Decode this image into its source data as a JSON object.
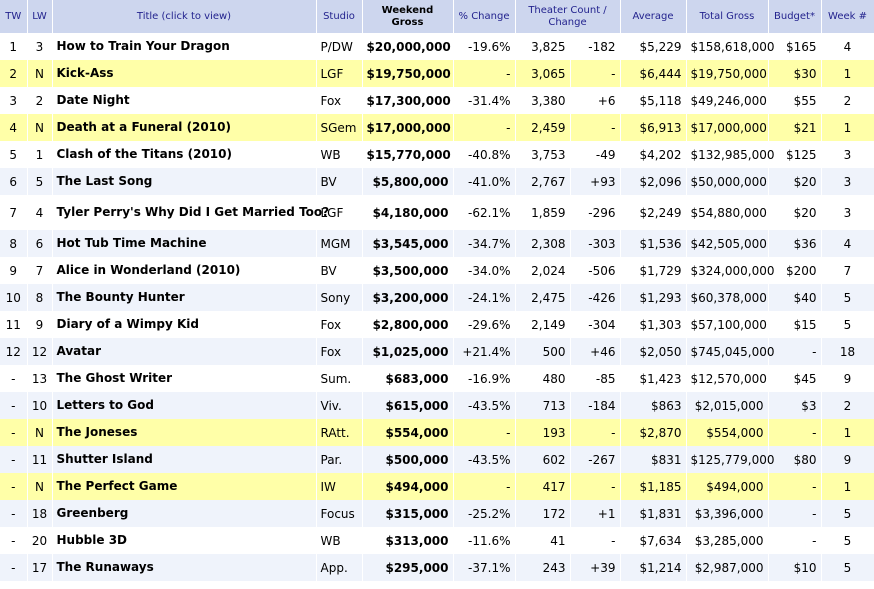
{
  "headers": {
    "tw": "TW",
    "lw": "LW",
    "title": "Title (click to view)",
    "studio": "Studio",
    "gross": "Weekend Gross",
    "pct": "% Change",
    "theater": "Theater Count / Change",
    "avg": "Average",
    "total": "Total Gross",
    "budget": "Budget*",
    "week": "Week #"
  },
  "rows": [
    {
      "tw": "1",
      "lw": "3",
      "title": "How to Train Your Dragon",
      "studio": "P/DW",
      "gross": "$20,000,000",
      "pct": "-19.6%",
      "theaters": "3,825",
      "tchange": "-182",
      "avg": "$5,229",
      "total": "$158,618,000",
      "budget": "$165",
      "week": "4",
      "style": "odd"
    },
    {
      "tw": "2",
      "lw": "N",
      "title": "Kick-Ass",
      "studio": "LGF",
      "gross": "$19,750,000",
      "pct": "-",
      "theaters": "3,065",
      "tchange": "-",
      "avg": "$6,444",
      "total": "$19,750,000",
      "budget": "$30",
      "week": "1",
      "style": "new"
    },
    {
      "tw": "3",
      "lw": "2",
      "title": "Date Night",
      "studio": "Fox",
      "gross": "$17,300,000",
      "pct": "-31.4%",
      "theaters": "3,380",
      "tchange": "+6",
      "avg": "$5,118",
      "total": "$49,246,000",
      "budget": "$55",
      "week": "2",
      "style": "odd"
    },
    {
      "tw": "4",
      "lw": "N",
      "title": "Death at a Funeral (2010)",
      "studio": "SGem",
      "gross": "$17,000,000",
      "pct": "-",
      "theaters": "2,459",
      "tchange": "-",
      "avg": "$6,913",
      "total": "$17,000,000",
      "budget": "$21",
      "week": "1",
      "style": "new"
    },
    {
      "tw": "5",
      "lw": "1",
      "title": "Clash of the Titans (2010)",
      "studio": "WB",
      "gross": "$15,770,000",
      "pct": "-40.8%",
      "theaters": "3,753",
      "tchange": "-49",
      "avg": "$4,202",
      "total": "$132,985,000",
      "budget": "$125",
      "week": "3",
      "style": "odd"
    },
    {
      "tw": "6",
      "lw": "5",
      "title": "The Last Song",
      "studio": "BV",
      "gross": "$5,800,000",
      "pct": "-41.0%",
      "theaters": "2,767",
      "tchange": "+93",
      "avg": "$2,096",
      "total": "$50,000,000",
      "budget": "$20",
      "week": "3",
      "style": "even"
    },
    {
      "tw": "7",
      "lw": "4",
      "title": "Tyler Perry's Why Did I Get Married Too?",
      "studio": "LGF",
      "gross": "$4,180,000",
      "pct": "-62.1%",
      "theaters": "1,859",
      "tchange": "-296",
      "avg": "$2,249",
      "total": "$54,880,000",
      "budget": "$20",
      "week": "3",
      "style": "odd",
      "tall": true
    },
    {
      "tw": "8",
      "lw": "6",
      "title": "Hot Tub Time Machine",
      "studio": "MGM",
      "gross": "$3,545,000",
      "pct": "-34.7%",
      "theaters": "2,308",
      "tchange": "-303",
      "avg": "$1,536",
      "total": "$42,505,000",
      "budget": "$36",
      "week": "4",
      "style": "even"
    },
    {
      "tw": "9",
      "lw": "7",
      "title": "Alice in Wonderland (2010)",
      "studio": "BV",
      "gross": "$3,500,000",
      "pct": "-34.0%",
      "theaters": "2,024",
      "tchange": "-506",
      "avg": "$1,729",
      "total": "$324,000,000",
      "budget": "$200",
      "week": "7",
      "style": "odd"
    },
    {
      "tw": "10",
      "lw": "8",
      "title": "The Bounty Hunter",
      "studio": "Sony",
      "gross": "$3,200,000",
      "pct": "-24.1%",
      "theaters": "2,475",
      "tchange": "-426",
      "avg": "$1,293",
      "total": "$60,378,000",
      "budget": "$40",
      "week": "5",
      "style": "even"
    },
    {
      "tw": "11",
      "lw": "9",
      "title": "Diary of a Wimpy Kid",
      "studio": "Fox",
      "gross": "$2,800,000",
      "pct": "-29.6%",
      "theaters": "2,149",
      "tchange": "-304",
      "avg": "$1,303",
      "total": "$57,100,000",
      "budget": "$15",
      "week": "5",
      "style": "odd"
    },
    {
      "tw": "12",
      "lw": "12",
      "title": "Avatar",
      "studio": "Fox",
      "gross": "$1,025,000",
      "pct": "+21.4%",
      "theaters": "500",
      "tchange": "+46",
      "avg": "$2,050",
      "total": "$745,045,000",
      "budget": "-",
      "week": "18",
      "style": "even"
    },
    {
      "tw": "-",
      "lw": "13",
      "title": "The Ghost Writer",
      "studio": "Sum.",
      "gross": "$683,000",
      "pct": "-16.9%",
      "theaters": "480",
      "tchange": "-85",
      "avg": "$1,423",
      "total": "$12,570,000",
      "budget": "$45",
      "week": "9",
      "style": "odd"
    },
    {
      "tw": "-",
      "lw": "10",
      "title": "Letters to God",
      "studio": "Viv.",
      "gross": "$615,000",
      "pct": "-43.5%",
      "theaters": "713",
      "tchange": "-184",
      "avg": "$863",
      "total": "$2,015,000",
      "budget": "$3",
      "week": "2",
      "style": "even"
    },
    {
      "tw": "-",
      "lw": "N",
      "title": "The Joneses",
      "studio": "RAtt.",
      "gross": "$554,000",
      "pct": "-",
      "theaters": "193",
      "tchange": "-",
      "avg": "$2,870",
      "total": "$554,000",
      "budget": "-",
      "week": "1",
      "style": "new"
    },
    {
      "tw": "-",
      "lw": "11",
      "title": "Shutter Island",
      "studio": "Par.",
      "gross": "$500,000",
      "pct": "-43.5%",
      "theaters": "602",
      "tchange": "-267",
      "avg": "$831",
      "total": "$125,779,000",
      "budget": "$80",
      "week": "9",
      "style": "even"
    },
    {
      "tw": "-",
      "lw": "N",
      "title": "The Perfect Game",
      "studio": "IW",
      "gross": "$494,000",
      "pct": "-",
      "theaters": "417",
      "tchange": "-",
      "avg": "$1,185",
      "total": "$494,000",
      "budget": "-",
      "week": "1",
      "style": "new"
    },
    {
      "tw": "-",
      "lw": "18",
      "title": "Greenberg",
      "studio": "Focus",
      "gross": "$315,000",
      "pct": "-25.2%",
      "theaters": "172",
      "tchange": "+1",
      "avg": "$1,831",
      "total": "$3,396,000",
      "budget": "-",
      "week": "5",
      "style": "even"
    },
    {
      "tw": "-",
      "lw": "20",
      "title": "Hubble 3D",
      "studio": "WB",
      "gross": "$313,000",
      "pct": "-11.6%",
      "theaters": "41",
      "tchange": "-",
      "avg": "$7,634",
      "total": "$3,285,000",
      "budget": "-",
      "week": "5",
      "style": "odd"
    },
    {
      "tw": "-",
      "lw": "17",
      "title": "The Runaways",
      "studio": "App.",
      "gross": "$295,000",
      "pct": "-37.1%",
      "theaters": "243",
      "tchange": "+39",
      "avg": "$1,214",
      "total": "$2,987,000",
      "budget": "$10",
      "week": "5",
      "style": "even"
    }
  ],
  "colors": {
    "header_bg": "#cdd6ee",
    "title_color": "#1a1a8c",
    "new_row_bg": "#ffffa8",
    "alt_row_bg": "#eff3fb",
    "negative": "#d40000",
    "positive": "#0000cc"
  }
}
